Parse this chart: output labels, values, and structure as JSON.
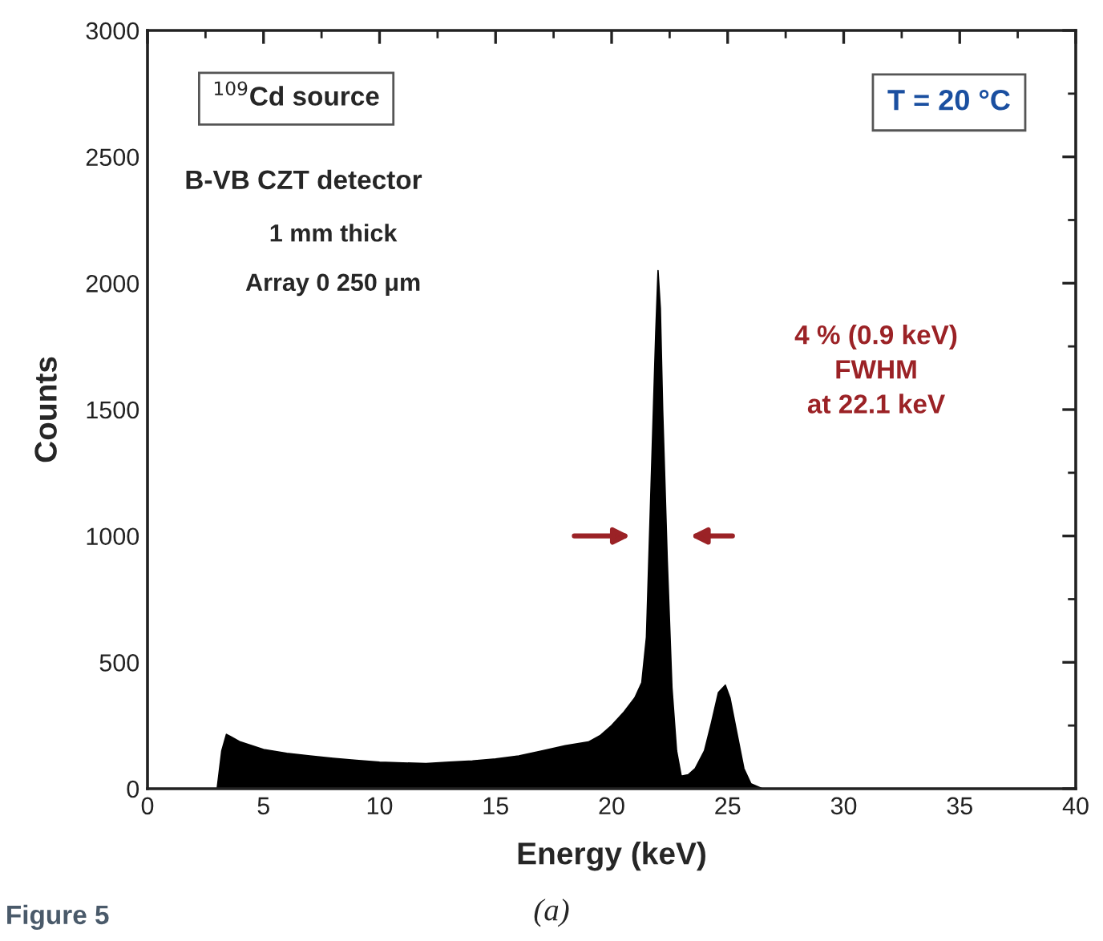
{
  "chart_data": {
    "type": "area",
    "xlabel": "Energy (keV)",
    "ylabel": "Counts",
    "x": [
      0,
      3.0,
      3.2,
      3.4,
      3.6,
      4.0,
      4.5,
      5.0,
      6.0,
      7.0,
      8.0,
      9.0,
      10.0,
      11.0,
      12.0,
      13.0,
      14.0,
      15.0,
      16.0,
      17.0,
      18.0,
      19.0,
      19.5,
      20.0,
      20.5,
      21.0,
      21.3,
      21.5,
      21.7,
      21.9,
      22.0,
      22.1,
      22.2,
      22.4,
      22.6,
      22.8,
      23.0,
      23.3,
      23.6,
      24.0,
      24.3,
      24.6,
      24.9,
      25.1,
      25.4,
      25.7,
      26.0,
      26.5,
      30,
      35,
      40
    ],
    "series": [
      {
        "color": "#000000",
        "values": [
          0,
          0,
          150,
          215,
          205,
          185,
          170,
          155,
          140,
          130,
          120,
          112,
          105,
          102,
          100,
          105,
          110,
          118,
          130,
          150,
          170,
          185,
          210,
          250,
          300,
          360,
          420,
          600,
          1200,
          1800,
          2050,
          1900,
          1500,
          900,
          400,
          150,
          50,
          55,
          80,
          150,
          260,
          380,
          410,
          360,
          220,
          80,
          20,
          0,
          0,
          0,
          0
        ]
      }
    ],
    "xlim": [
      0,
      40
    ],
    "ylim": [
      0,
      3000
    ],
    "xticks": [
      0,
      5,
      10,
      15,
      20,
      25,
      30,
      35,
      40
    ],
    "yticks": [
      0,
      500,
      1000,
      1500,
      2000,
      2500,
      3000
    ],
    "annotations": [
      "$^{109}$Cd source",
      "T = 20 °C",
      "B-VB CZT detector",
      "1 mm thick",
      "Array 0 250 μm",
      "4 % (0.9 keV)\nFWHM\nat 22.1 keV",
      "(a)",
      "Figure 5"
    ]
  }
}
